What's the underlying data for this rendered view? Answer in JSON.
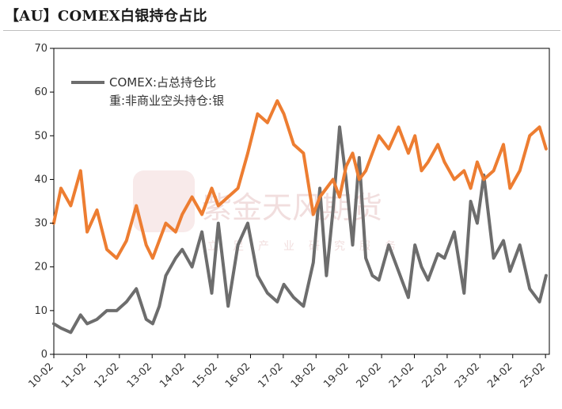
{
  "title": "【AU】COMEX白银持仓占比",
  "colors": {
    "series1": "#6d6d6d",
    "series2": "#ed7d31",
    "axis": "#000000"
  },
  "watermark": {
    "logo": "紫金天风期货",
    "motto": "立足产业研究服务"
  },
  "chart_data": {
    "type": "line",
    "title": "【AU】COMEX白银持仓占比",
    "xlabel": "",
    "ylabel": "",
    "xlim": [
      2010.083,
      2025.2
    ],
    "ylim": [
      0,
      70
    ],
    "yticks": [
      0,
      10,
      20,
      30,
      40,
      50,
      60,
      70
    ],
    "xticks": [
      "10-02",
      "11-02",
      "12-02",
      "13-02",
      "14-02",
      "15-02",
      "16-02",
      "17-02",
      "18-02",
      "19-02",
      "20-02",
      "21-02",
      "22-02",
      "23-02",
      "24-02",
      "25-02"
    ],
    "grid": false,
    "legend_position": "top-left",
    "series": [
      {
        "name": "COMEX:占总持仓比",
        "color": "#6d6d6d",
        "x": [
          2010.08,
          2010.3,
          2010.6,
          2010.9,
          2011.1,
          2011.4,
          2011.7,
          2012.0,
          2012.3,
          2012.6,
          2012.9,
          2013.1,
          2013.3,
          2013.5,
          2013.8,
          2014.0,
          2014.3,
          2014.6,
          2014.9,
          2015.1,
          2015.4,
          2015.7,
          2016.0,
          2016.3,
          2016.6,
          2016.9,
          2017.1,
          2017.4,
          2017.7,
          2018.0,
          2018.2,
          2018.4,
          2018.6,
          2018.8,
          2019.0,
          2019.2,
          2019.4,
          2019.6,
          2019.8,
          2020.0,
          2020.3,
          2020.6,
          2020.9,
          2021.1,
          2021.3,
          2021.5,
          2021.8,
          2022.0,
          2022.3,
          2022.6,
          2022.8,
          2023.0,
          2023.2,
          2023.5,
          2023.8,
          2024.0,
          2024.3,
          2024.6,
          2024.9,
          2025.1
        ],
        "y": [
          7,
          6,
          5,
          9,
          7,
          8,
          10,
          10,
          12,
          15,
          8,
          7,
          11,
          18,
          22,
          24,
          20,
          28,
          14,
          30,
          11,
          25,
          30,
          18,
          14,
          12,
          16,
          13,
          11,
          21,
          38,
          18,
          33,
          52,
          40,
          25,
          45,
          22,
          18,
          17,
          25,
          19,
          13,
          25,
          20,
          17,
          23,
          22,
          28,
          14,
          35,
          30,
          41,
          22,
          26,
          19,
          25,
          15,
          12,
          18
        ]
      },
      {
        "name": "重:非商业空头持仓:银",
        "color": "#ed7d31",
        "x": [
          2010.08,
          2010.3,
          2010.6,
          2010.9,
          2011.1,
          2011.4,
          2011.7,
          2012.0,
          2012.3,
          2012.6,
          2012.9,
          2013.1,
          2013.3,
          2013.5,
          2013.8,
          2014.0,
          2014.3,
          2014.6,
          2014.9,
          2015.1,
          2015.4,
          2015.7,
          2016.0,
          2016.3,
          2016.6,
          2016.9,
          2017.1,
          2017.4,
          2017.7,
          2018.0,
          2018.2,
          2018.4,
          2018.6,
          2018.8,
          2019.0,
          2019.2,
          2019.4,
          2019.6,
          2019.8,
          2020.0,
          2020.3,
          2020.6,
          2020.9,
          2021.1,
          2021.3,
          2021.5,
          2021.8,
          2022.0,
          2022.3,
          2022.6,
          2022.8,
          2023.0,
          2023.2,
          2023.5,
          2023.8,
          2024.0,
          2024.3,
          2024.6,
          2024.9,
          2025.1
        ],
        "y": [
          30,
          38,
          34,
          42,
          28,
          33,
          24,
          22,
          26,
          34,
          25,
          22,
          26,
          30,
          28,
          32,
          36,
          32,
          38,
          34,
          36,
          38,
          46,
          55,
          53,
          58,
          55,
          48,
          46,
          32,
          36,
          38,
          40,
          36,
          43,
          46,
          40,
          42,
          46,
          50,
          47,
          52,
          46,
          50,
          42,
          44,
          48,
          44,
          40,
          42,
          38,
          44,
          40,
          42,
          48,
          38,
          42,
          50,
          52,
          47
        ]
      }
    ]
  }
}
